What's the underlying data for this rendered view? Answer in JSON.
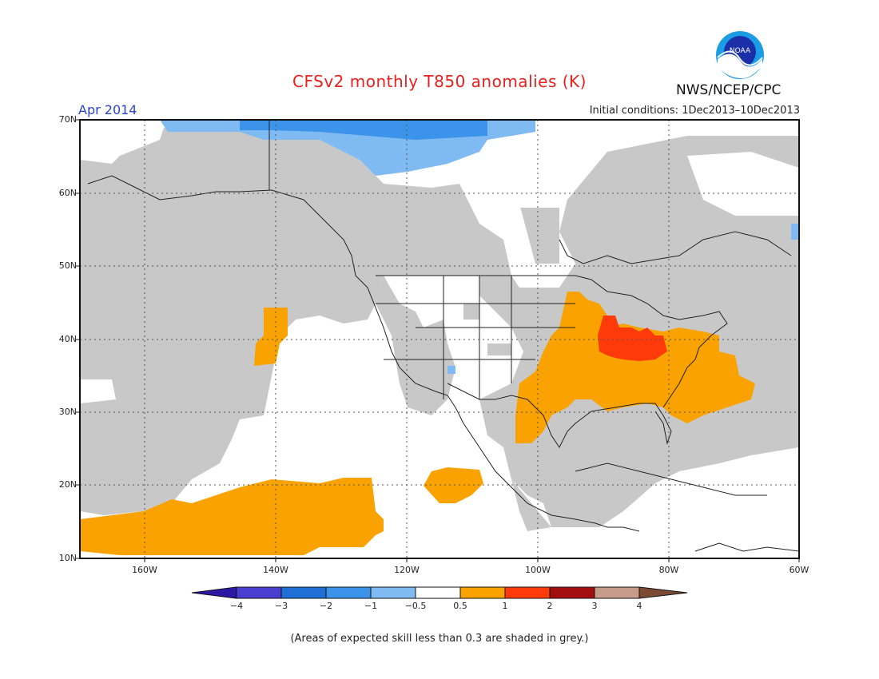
{
  "title": "CFSv2 monthly T850 anomalies (K)",
  "agency": "NWS/NCEP/CPC",
  "logo_text": "NOAA",
  "month": "Apr 2014",
  "initial_conditions": "Initial conditions: 1Dec2013–10Dec2013",
  "lat_labels": [
    "70N",
    "60N",
    "50N",
    "40N",
    "30N",
    "20N",
    "10N"
  ],
  "lon_labels": [
    "160W",
    "140W",
    "120W",
    "100W",
    "80W",
    "60W"
  ],
  "colorbar": {
    "labels": [
      "−4",
      "−3",
      "−2",
      "−1",
      "−0.5",
      "0.5",
      "1",
      "2",
      "3",
      "4"
    ],
    "colors": [
      "#2c17a6",
      "#4a3fd0",
      "#1f6fd6",
      "#3b93ea",
      "#7fbaf3",
      "#ffffff",
      "#f9a200",
      "#fe3a0b",
      "#a30e0e",
      "#c79c8a",
      "#7a4a35"
    ]
  },
  "skill_mask_color": "#c8c8c8",
  "footnote": "(Areas of expected skill less than 0.3 are shaded in grey.)"
}
